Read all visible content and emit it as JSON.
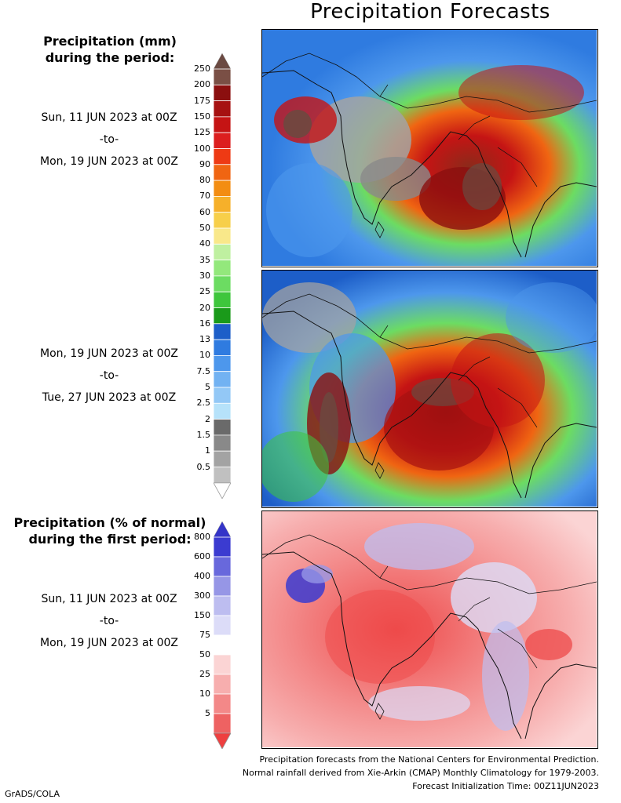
{
  "title": "Precipitation Forecasts",
  "legend_mm": {
    "title_line1": "Precipitation (mm)",
    "title_line2": "during the period:",
    "ticks": [
      "250",
      "200",
      "175",
      "150",
      "125",
      "100",
      "90",
      "80",
      "70",
      "60",
      "50",
      "40",
      "35",
      "30",
      "25",
      "20",
      "16",
      "13",
      "10",
      "7.5",
      "5",
      "2.5",
      "2",
      "1.5",
      "1",
      "0.5"
    ],
    "colors": [
      "#7a4f45",
      "#8b0f0f",
      "#a61111",
      "#c51414",
      "#dc1e1e",
      "#ee3a14",
      "#f06512",
      "#f38d12",
      "#f6b02a",
      "#f7cf4a",
      "#f9e88a",
      "#bff0a0",
      "#93e87c",
      "#6cdc62",
      "#3ec63c",
      "#1a9a1a",
      "#1d5ec8",
      "#2f7be0",
      "#4d97ec",
      "#72b2f2",
      "#93c8f6",
      "#b6e2fa",
      "#6a6a6a",
      "#898989",
      "#a3a3a3",
      "#c0c0c0"
    ],
    "top_arrow_color": "#6b4a42",
    "bottom_arrow_color": "#ffffff"
  },
  "period1": {
    "start": "Sun, 11 JUN 2023 at 00Z",
    "sep": "-to-",
    "end": "Mon, 19 JUN 2023 at 00Z"
  },
  "period2": {
    "start": "Mon, 19 JUN 2023 at 00Z",
    "sep": "-to-",
    "end": "Tue, 27 JUN 2023 at 00Z"
  },
  "legend_pct": {
    "title_line1": "Precipitation (% of normal)",
    "title_line2": "during the first period:",
    "ticks": [
      "800",
      "600",
      "400",
      "300",
      "150",
      "75",
      "50",
      "25",
      "10",
      "5"
    ],
    "colors": [
      "#3b3bd0",
      "#6868dc",
      "#9696e6",
      "#bdbdf0",
      "#dcdcf8",
      "#ffffff",
      "#fbd4d4",
      "#f7aeae",
      "#f38888",
      "#ee6262"
    ],
    "top_arrow_color": "#3434c8",
    "bottom_arrow_color": "#ee4040"
  },
  "period3": {
    "start": "Sun, 11 JUN 2023 at 00Z",
    "sep": "-to-",
    "end": "Mon, 19 JUN 2023 at 00Z"
  },
  "footer": {
    "line1": "Precipitation forecasts from the National Centers for Environmental Prediction.",
    "line2": "Normal rainfall derived from Xie-Arkin (CMAP) Monthly Climatology for 1979-2003.",
    "line3": "Forecast Initialization Time: 00Z11JUN2023"
  },
  "credit": "GrADS/COLA"
}
